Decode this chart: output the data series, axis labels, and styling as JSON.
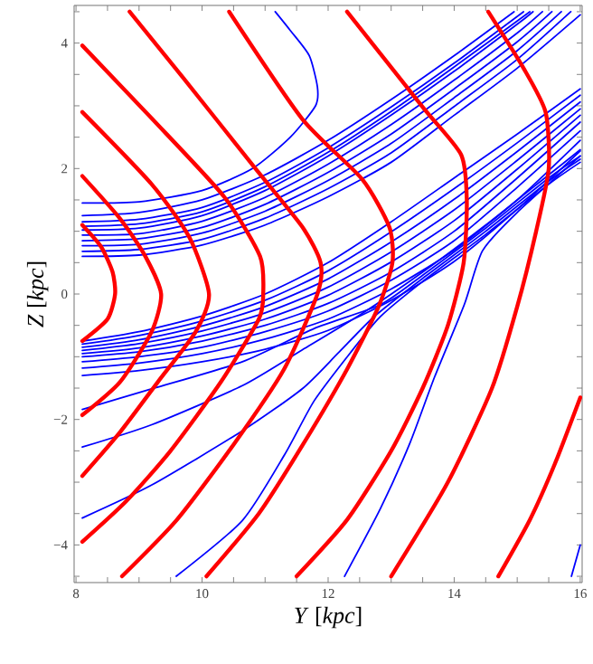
{
  "chart_data": {
    "type": "line",
    "xlabel": "*Y* [*kpc*]",
    "ylabel": "*Z* [*kpc*]",
    "xlim": [
      7.97,
      16.03
    ],
    "ylim": [
      -4.6,
      4.6
    ],
    "xticks": [
      8,
      {
        "value": 8.5,
        "label": null
      },
      {
        "value": 9,
        "label": null
      },
      {
        "value": 9.5,
        "label": null
      },
      10,
      {
        "value": 10.5,
        "label": null
      },
      {
        "value": 11,
        "label": null
      },
      {
        "value": 11.5,
        "label": null
      },
      12,
      {
        "value": 12.5,
        "label": null
      },
      {
        "value": 13,
        "label": null
      },
      {
        "value": 13.5,
        "label": null
      },
      14,
      {
        "value": 14.5,
        "label": null
      },
      {
        "value": 15,
        "label": null
      },
      {
        "value": 15.5,
        "label": null
      },
      16
    ],
    "yticks": [
      {
        "value": -4.5,
        "label": null
      },
      {
        "value": -4,
        "label": "−4"
      },
      {
        "value": -3.5,
        "label": null
      },
      {
        "value": -3,
        "label": null
      },
      {
        "value": -2.5,
        "label": null
      },
      {
        "value": -2,
        "label": "−2"
      },
      {
        "value": -1.5,
        "label": null
      },
      {
        "value": -1,
        "label": null
      },
      {
        "value": -0.5,
        "label": null
      },
      0,
      {
        "value": 0.5,
        "label": null
      },
      {
        "value": 1,
        "label": null
      },
      {
        "value": 1.5,
        "label": null
      },
      2,
      {
        "value": 2.5,
        "label": null
      },
      {
        "value": 3,
        "label": null
      },
      {
        "value": 3.5,
        "label": null
      },
      4,
      {
        "value": 4.5,
        "label": null
      }
    ],
    "grid": false,
    "series": [
      {
        "color": "#0000ff",
        "x": [
          8.1,
          9,
          10,
          11,
          12,
          13,
          14,
          15,
          16
        ],
        "values": [
          0.6,
          0.62,
          0.78,
          1.1,
          1.55,
          2.1,
          2.85,
          3.6,
          4.45
        ]
      },
      {
        "color": "#0000ff",
        "x": [
          8.1,
          9,
          10,
          11,
          12,
          13,
          14,
          15,
          15.85
        ],
        "values": [
          0.68,
          0.71,
          0.87,
          1.21,
          1.68,
          2.25,
          2.99,
          3.74,
          4.5
        ]
      },
      {
        "color": "#0000ff",
        "x": [
          8.1,
          9,
          10,
          11,
          12,
          13,
          14,
          15,
          15.7
        ],
        "values": [
          0.77,
          0.79,
          0.97,
          1.32,
          1.81,
          2.4,
          3.13,
          3.88,
          4.5
        ]
      },
      {
        "color": "#0000ff",
        "x": [
          8.1,
          9,
          10,
          11,
          12,
          13,
          14,
          15,
          15.55
        ],
        "values": [
          0.85,
          0.88,
          1.06,
          1.43,
          1.94,
          2.55,
          3.27,
          4.02,
          4.5
        ]
      },
      {
        "color": "#0000ff",
        "x": [
          8.1,
          9,
          10,
          11,
          12,
          13,
          14,
          15,
          15.4
        ],
        "values": [
          0.94,
          0.96,
          1.16,
          1.54,
          2.07,
          2.7,
          3.41,
          4.16,
          4.5
        ]
      },
      {
        "color": "#0000ff",
        "x": [
          8.1,
          9,
          10,
          11,
          12,
          13,
          14,
          15,
          15.25
        ],
        "values": [
          1.02,
          1.05,
          1.25,
          1.65,
          2.2,
          2.85,
          3.55,
          4.3,
          4.5
        ]
      },
      {
        "color": "#0000ff",
        "x": [
          8.1,
          9,
          10,
          11,
          12,
          13,
          14,
          15.2
        ],
        "values": [
          1.08,
          1.12,
          1.31,
          1.71,
          2.26,
          2.91,
          3.62,
          4.5
        ]
      },
      {
        "color": "#0000ff",
        "x": [
          8.1,
          9,
          10,
          11,
          12,
          13,
          14,
          15.1
        ],
        "values": [
          1.15,
          1.19,
          1.38,
          1.78,
          2.33,
          2.98,
          3.68,
          4.5
        ]
      },
      {
        "color": "#0000ff",
        "x": [
          8.1,
          9,
          10,
          11,
          12,
          13,
          14,
          14.95
        ],
        "values": [
          1.25,
          1.3,
          1.5,
          1.9,
          2.45,
          3.1,
          3.8,
          4.5
        ]
      },
      {
        "color": "#0000ff",
        "x": [
          8.1,
          9,
          10,
          10.8,
          11.4,
          11.8,
          11.83,
          11.7,
          11.4,
          11.16
        ],
        "values": [
          1.45,
          1.47,
          1.65,
          2.0,
          2.5,
          3.0,
          3.3,
          3.8,
          4.2,
          4.5
        ]
      },
      {
        "color": "#0000ff",
        "x": [
          8.1,
          9,
          10,
          11,
          12,
          13,
          14,
          15,
          16
        ],
        "values": [
          -1.0,
          -0.92,
          -0.75,
          -0.5,
          -0.15,
          0.35,
          1.0,
          1.85,
          2.74
        ]
      },
      {
        "color": "#0000ff",
        "x": [
          8.1,
          9,
          10,
          11,
          12,
          13,
          14,
          15,
          16
        ],
        "values": [
          -0.95,
          -0.86,
          -0.67,
          -0.4,
          -0.02,
          0.51,
          1.17,
          1.99,
          2.85
        ]
      },
      {
        "color": "#0000ff",
        "x": [
          8.1,
          9,
          10,
          11,
          12,
          13,
          14,
          15,
          16
        ],
        "values": [
          -0.9,
          -0.79,
          -0.59,
          -0.3,
          0.11,
          0.67,
          1.34,
          2.13,
          2.95
        ]
      },
      {
        "color": "#0000ff",
        "x": [
          8.1,
          9,
          10,
          11,
          12,
          13,
          14,
          15,
          16
        ],
        "values": [
          -0.85,
          -0.73,
          -0.51,
          -0.2,
          0.24,
          0.83,
          1.51,
          2.27,
          3.06
        ]
      },
      {
        "color": "#0000ff",
        "x": [
          8.1,
          9,
          10,
          11,
          12,
          13,
          14,
          15,
          16
        ],
        "values": [
          -0.8,
          -0.66,
          -0.43,
          -0.1,
          0.37,
          0.99,
          1.68,
          2.41,
          3.17
        ]
      },
      {
        "color": "#0000ff",
        "x": [
          8.1,
          9,
          10,
          11,
          12,
          13,
          14,
          15,
          16
        ],
        "values": [
          -0.75,
          -0.6,
          -0.35,
          0.0,
          0.5,
          1.15,
          1.85,
          2.55,
          3.27
        ]
      },
      {
        "color": "#0000ff",
        "x": [
          8.1,
          9,
          10,
          11,
          12,
          13,
          14,
          15,
          16
        ],
        "values": [
          -1.08,
          -1.0,
          -0.85,
          -0.6,
          -0.27,
          0.22,
          0.85,
          1.7,
          2.6
        ]
      },
      {
        "color": "#0000ff",
        "x": [
          8.1,
          9,
          10,
          11,
          12,
          13,
          14,
          15,
          16
        ],
        "values": [
          -1.18,
          -1.1,
          -0.95,
          -0.72,
          -0.4,
          0.08,
          0.7,
          1.5,
          2.45
        ]
      },
      {
        "color": "#0000ff",
        "x": [
          8.1,
          9,
          10,
          11,
          12,
          13,
          14,
          15,
          16
        ],
        "values": [
          -1.3,
          -1.22,
          -1.08,
          -0.88,
          -0.58,
          -0.1,
          0.52,
          1.35,
          2.28
        ]
      },
      {
        "color": "#0000ff",
        "x": [
          8.1,
          9.21,
          10.64,
          11.78,
          12.83,
          13.5,
          14.5,
          15.5,
          16
        ],
        "values": [
          -1.84,
          -1.51,
          -1.08,
          -0.55,
          -0.17,
          0.3,
          1.05,
          1.85,
          2.2
        ]
      },
      {
        "color": "#0000ff",
        "x": [
          8.1,
          9.21,
          10.64,
          11.59,
          12.54,
          13.5,
          14.5,
          15.5,
          16
        ],
        "values": [
          -2.44,
          -2.08,
          -1.46,
          -0.89,
          -0.31,
          0.35,
          1.1,
          1.9,
          2.3
        ]
      },
      {
        "color": "#0000ff",
        "x": [
          8.1,
          9.21,
          10.64,
          11.59,
          12.16,
          12.73,
          13.5,
          14.5,
          15.5,
          16
        ],
        "values": [
          -3.57,
          -3.04,
          -2.18,
          -1.51,
          -0.94,
          -0.36,
          0.25,
          1.0,
          1.8,
          2.15
        ]
      },
      {
        "color": "#0000ff",
        "x": [
          9.59,
          10.64,
          11.31,
          11.78,
          12.35,
          12.83,
          13.5,
          14.5,
          15.5,
          16
        ],
        "values": [
          -4.5,
          -3.61,
          -2.56,
          -1.7,
          -0.94,
          -0.36,
          0.2,
          0.95,
          1.75,
          2.1
        ]
      },
      {
        "color": "#0000ff",
        "x": [
          12.26,
          12.83,
          13.3,
          13.69,
          14.16,
          14.45,
          15,
          16
        ],
        "values": [
          -4.5,
          -3.42,
          -2.37,
          -1.32,
          -0.17,
          0.69,
          1.3,
          2.2
        ]
      },
      {
        "color": "#0000ff",
        "x": [
          15.86,
          16
        ],
        "values": [
          -4.5,
          -4.0
        ]
      },
      {
        "color": "#ff0000",
        "x": [
          8.1,
          8.4,
          8.58,
          8.62,
          8.5,
          8.1
        ],
        "values": [
          1.1,
          0.75,
          0.35,
          0.0,
          -0.4,
          -0.75
        ]
      },
      {
        "color": "#ff0000",
        "x": [
          8.1,
          8.7,
          9.1,
          9.35,
          9.2,
          8.7,
          8.1
        ],
        "values": [
          1.88,
          1.2,
          0.6,
          0.0,
          -0.6,
          -1.4,
          -1.93
        ]
      },
      {
        "color": "#ff0000",
        "x": [
          8.1,
          9.2,
          9.8,
          10.11,
          9.9,
          9.3,
          8.7,
          8.1
        ],
        "values": [
          2.9,
          1.75,
          0.9,
          0.0,
          -0.6,
          -1.4,
          -2.2,
          -2.9
        ]
      },
      {
        "color": "#ff0000",
        "x": [
          8.1,
          9.21,
          10.35,
          10.92,
          10.97,
          10.9,
          10.3,
          9.5,
          8.8,
          8.1
        ],
        "values": [
          3.96,
          2.79,
          1.55,
          0.6,
          0.0,
          -0.4,
          -1.4,
          -2.5,
          -3.3,
          -3.95
        ]
      },
      {
        "color": "#ff0000",
        "x": [
          8.85,
          9.69,
          10.83,
          11.59,
          11.88,
          11.83,
          11.3,
          10.5,
          9.6,
          8.73
        ],
        "values": [
          4.5,
          3.46,
          2.02,
          1.07,
          0.5,
          0.0,
          -1.2,
          -2.4,
          -3.6,
          -4.5
        ]
      },
      {
        "color": "#ff0000",
        "x": [
          10.43,
          11.59,
          12.54,
          12.97,
          13.02,
          12.8,
          12.3,
          11.6,
          10.9,
          10.07
        ],
        "values": [
          4.5,
          2.79,
          1.83,
          1.07,
          0.5,
          -0.2,
          -1.2,
          -2.4,
          -3.5,
          -4.5
        ]
      },
      {
        "color": "#ff0000",
        "x": [
          12.3,
          13.5,
          14.11,
          14.2,
          14.15,
          13.9,
          13.5,
          13.0,
          12.3,
          11.5
        ],
        "values": [
          4.5,
          2.98,
          2.22,
          1.5,
          0.5,
          -0.5,
          -1.5,
          -2.5,
          -3.6,
          -4.5
        ]
      },
      {
        "color": "#ff0000",
        "x": [
          14.54,
          15.1,
          15.45,
          15.5,
          15.3,
          15.0,
          14.6,
          13.9,
          13.0
        ],
        "values": [
          4.5,
          3.6,
          2.9,
          2.0,
          1.0,
          -0.2,
          -1.5,
          -3.0,
          -4.5
        ]
      },
      {
        "color": "#ff0000",
        "x": [
          16,
          15.6,
          15.2,
          14.7
        ],
        "values": [
          -1.65,
          -2.7,
          -3.6,
          -4.5
        ]
      }
    ]
  }
}
